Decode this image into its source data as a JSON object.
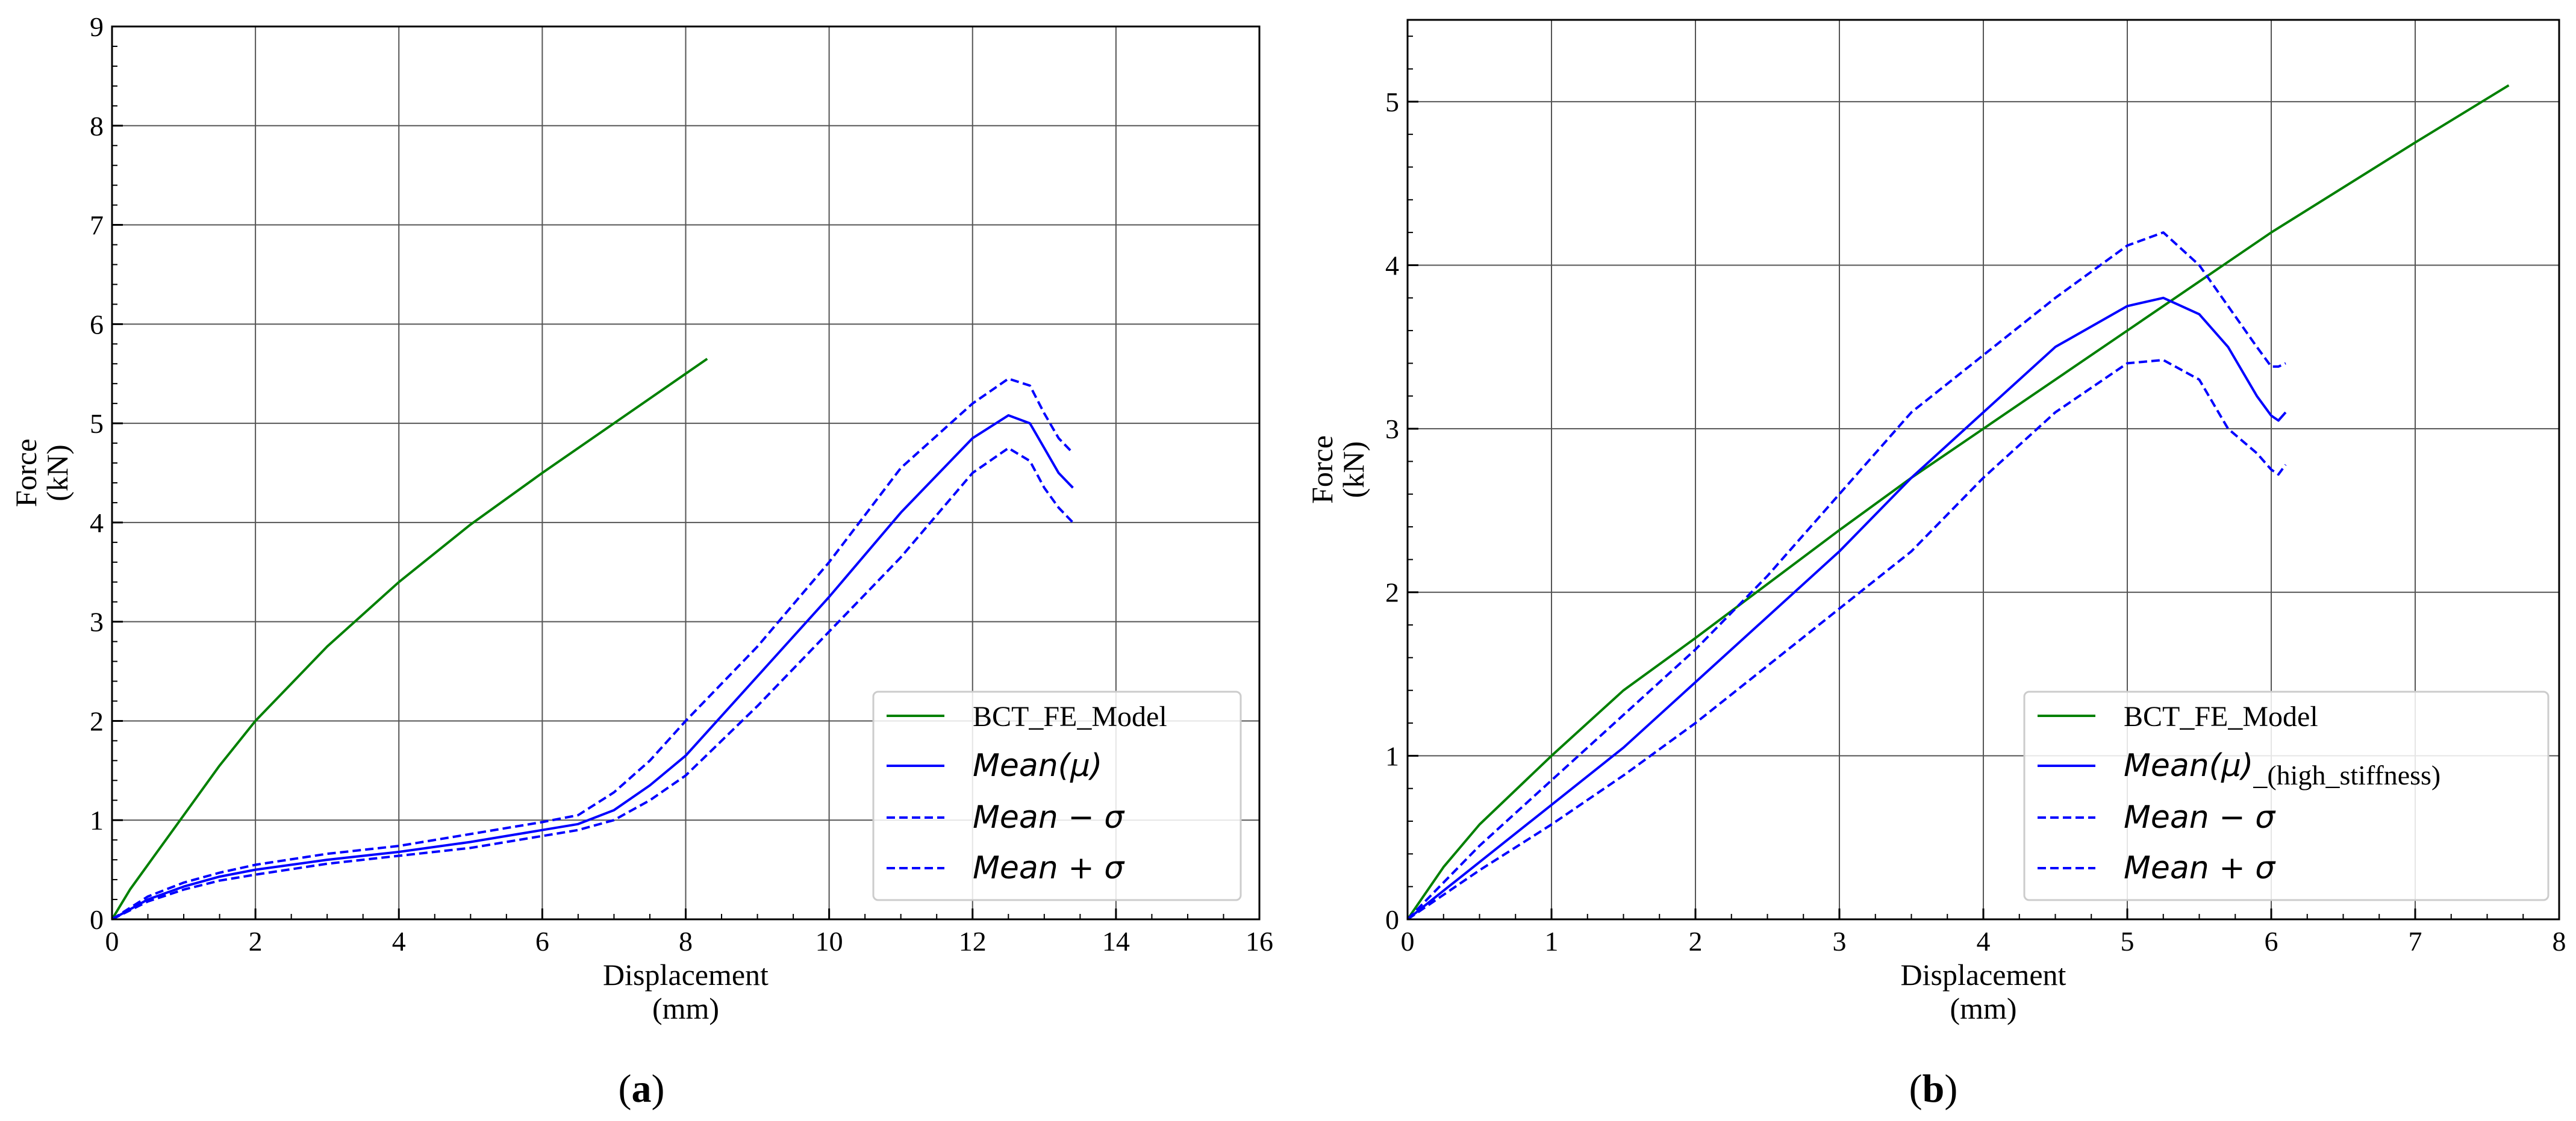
{
  "chart_data": [
    {
      "type": "line",
      "panel_label": "(a)",
      "xlabel": "Displacement",
      "xunit": "(mm)",
      "ylabel": "Force",
      "yunit": "(kN)",
      "xlim": [
        0,
        16
      ],
      "ylim": [
        0,
        9
      ],
      "xticks": [
        0,
        2,
        4,
        6,
        8,
        10,
        12,
        14,
        16
      ],
      "yticks": [
        0,
        1,
        2,
        3,
        4,
        5,
        6,
        7,
        8,
        9
      ],
      "grid": true,
      "legend_position": "lower-right",
      "series": [
        {
          "name": "BCT_FE_Model",
          "color": "#008000",
          "style": "solid",
          "x": [
            0,
            0.25,
            0.5,
            1,
            1.5,
            2,
            3,
            4,
            5,
            6,
            7,
            8,
            8.3
          ],
          "y": [
            0,
            0.3,
            0.55,
            1.05,
            1.55,
            2.0,
            2.75,
            3.4,
            3.98,
            4.5,
            5.0,
            5.5,
            5.65
          ]
        },
        {
          "name": "Mean(μ)",
          "color": "#0000ff",
          "style": "solid",
          "x": [
            0,
            0.5,
            1,
            1.5,
            2,
            3,
            4,
            5,
            6,
            6.5,
            7,
            7.5,
            8,
            9,
            10,
            11,
            12,
            12.5,
            12.8,
            13.0,
            13.2,
            13.4
          ],
          "y": [
            0,
            0.2,
            0.33,
            0.43,
            0.5,
            0.6,
            0.68,
            0.78,
            0.9,
            0.96,
            1.1,
            1.35,
            1.65,
            2.45,
            3.25,
            4.1,
            4.85,
            5.08,
            5.0,
            4.75,
            4.5,
            4.35
          ]
        },
        {
          "name": "Mean − σ",
          "color": "#0000ff",
          "style": "dashed",
          "x": [
            0,
            0.5,
            1,
            1.5,
            2,
            3,
            4,
            5,
            6,
            6.5,
            7,
            7.5,
            8,
            9,
            10,
            11,
            12,
            12.5,
            12.8,
            13.0,
            13.2,
            13.4
          ],
          "y": [
            0,
            0.18,
            0.3,
            0.39,
            0.45,
            0.56,
            0.64,
            0.72,
            0.84,
            0.9,
            1.0,
            1.2,
            1.45,
            2.15,
            2.9,
            3.65,
            4.5,
            4.75,
            4.62,
            4.35,
            4.15,
            4.0
          ]
        },
        {
          "name": "Mean + σ",
          "color": "#0000ff",
          "style": "dashed",
          "x": [
            0,
            0.5,
            1,
            1.5,
            2,
            3,
            4,
            5,
            6,
            6.5,
            7,
            7.5,
            8,
            9,
            10,
            11,
            12,
            12.5,
            12.8,
            13.0,
            13.2,
            13.4
          ],
          "y": [
            0,
            0.23,
            0.37,
            0.47,
            0.55,
            0.66,
            0.74,
            0.86,
            0.98,
            1.05,
            1.28,
            1.6,
            2.0,
            2.75,
            3.6,
            4.55,
            5.2,
            5.45,
            5.38,
            5.1,
            4.85,
            4.7
          ]
        }
      ]
    },
    {
      "type": "line",
      "panel_label": "(b)",
      "xlabel": "Displacement",
      "xunit": "(mm)",
      "ylabel": "Force",
      "yunit": "(kN)",
      "xlim": [
        0,
        8
      ],
      "ylim": [
        0,
        5.5
      ],
      "xticks": [
        0,
        1,
        2,
        3,
        4,
        5,
        6,
        7,
        8
      ],
      "yticks": [
        0,
        1,
        2,
        3,
        4,
        5
      ],
      "grid": true,
      "legend_position": "lower-right",
      "series": [
        {
          "name": "BCT_FE_Model",
          "color": "#008000",
          "style": "solid",
          "x": [
            0,
            0.25,
            0.5,
            1,
            1.5,
            2,
            2.5,
            3,
            3.5,
            4,
            5,
            6,
            7,
            7.65
          ],
          "y": [
            0,
            0.32,
            0.58,
            1.0,
            1.4,
            1.72,
            2.05,
            2.38,
            2.7,
            3.0,
            3.6,
            4.2,
            4.75,
            5.1
          ]
        },
        {
          "name": "Mean(μ)",
          "name_suffix": "_(high_stiffness)",
          "color": "#0000ff",
          "style": "solid",
          "x": [
            0,
            0.5,
            1,
            1.5,
            2,
            2.5,
            3,
            3.5,
            4,
            4.5,
            5,
            5.25,
            5.5,
            5.7,
            5.9,
            6.0,
            6.05,
            6.1
          ],
          "y": [
            0,
            0.35,
            0.7,
            1.05,
            1.45,
            1.85,
            2.25,
            2.7,
            3.1,
            3.5,
            3.75,
            3.8,
            3.7,
            3.5,
            3.2,
            3.08,
            3.05,
            3.1
          ]
        },
        {
          "name": "Mean − σ",
          "color": "#0000ff",
          "style": "dashed",
          "x": [
            0,
            0.5,
            1,
            1.5,
            2,
            2.5,
            3,
            3.5,
            4,
            4.5,
            5,
            5.25,
            5.5,
            5.7,
            5.9,
            6.0,
            6.05,
            6.1
          ],
          "y": [
            0,
            0.3,
            0.58,
            0.88,
            1.2,
            1.55,
            1.9,
            2.25,
            2.7,
            3.1,
            3.4,
            3.42,
            3.3,
            3.0,
            2.85,
            2.75,
            2.72,
            2.78
          ]
        },
        {
          "name": "Mean + σ",
          "color": "#0000ff",
          "style": "dashed",
          "x": [
            0,
            0.5,
            1,
            1.5,
            2,
            2.5,
            3,
            3.5,
            4,
            4.5,
            5,
            5.25,
            5.5,
            5.7,
            5.9,
            6.0,
            6.05,
            6.1
          ],
          "y": [
            0,
            0.45,
            0.85,
            1.25,
            1.65,
            2.1,
            2.6,
            3.1,
            3.45,
            3.8,
            4.12,
            4.2,
            4.0,
            3.75,
            3.5,
            3.38,
            3.38,
            3.4
          ]
        }
      ]
    }
  ]
}
